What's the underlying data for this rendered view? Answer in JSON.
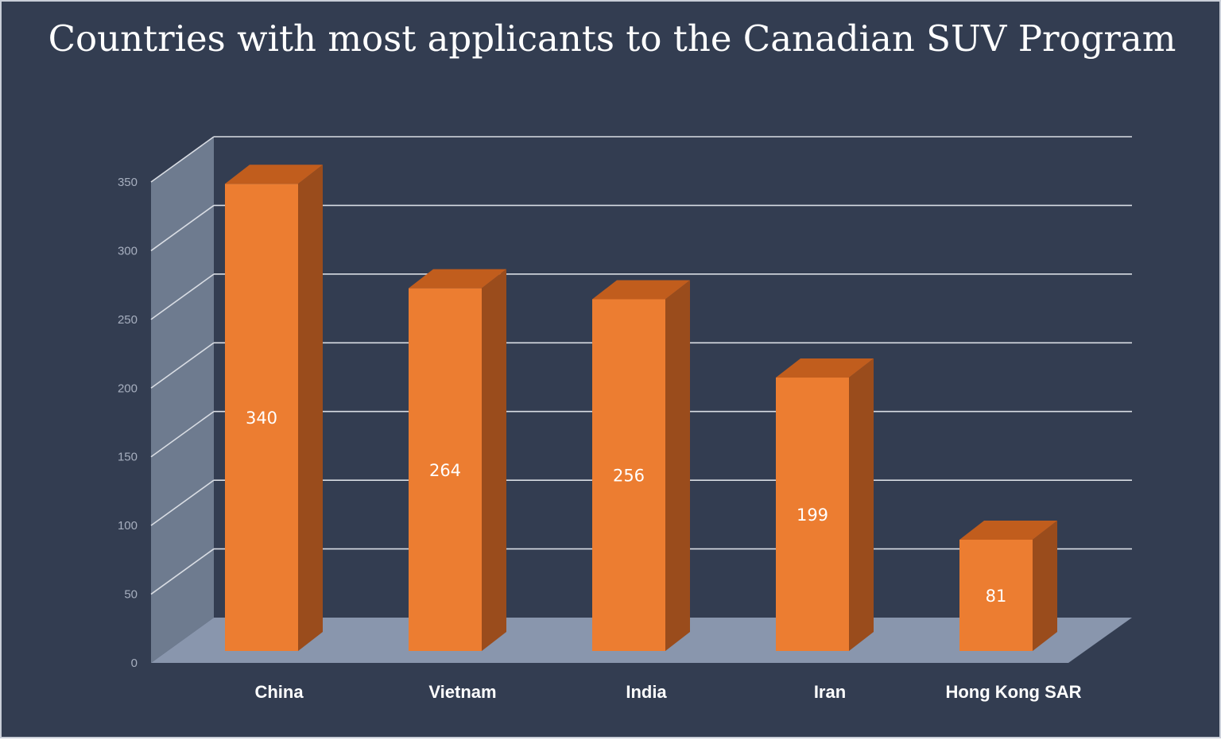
{
  "chart_data": {
    "type": "bar",
    "title": "Countries with most applicants to the Canadian SUV Program",
    "categories": [
      "China",
      "Vietnam",
      "India",
      "Iran",
      "Hong Kong SAR"
    ],
    "values": [
      340,
      264,
      256,
      199,
      81
    ],
    "ylim": [
      0,
      350
    ],
    "yticks": [
      0,
      50,
      100,
      150,
      200,
      250,
      300,
      350
    ],
    "grid": true,
    "three_d": true,
    "data_labels": true,
    "colors": {
      "background": "#333d51",
      "bar_front": "#ec7d31",
      "bar_top": "#c15d1d",
      "bar_side": "#9a4c1c",
      "side_wall": "#6e7b8f",
      "floor": "#8996ad",
      "grid": "#d9dde4"
    }
  }
}
